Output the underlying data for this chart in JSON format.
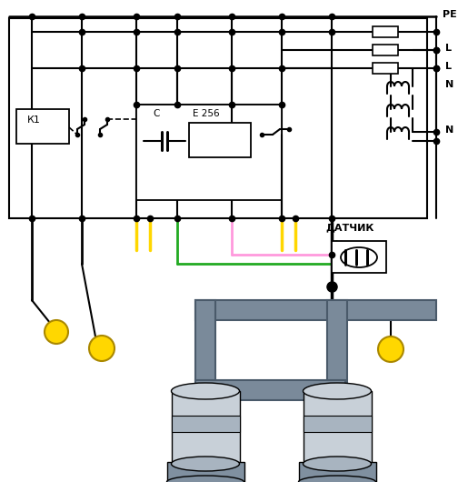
{
  "bg_color": "#ffffff",
  "colors": {
    "black": "#000000",
    "yellow": "#FFD700",
    "green": "#22AA22",
    "pink": "#FF99DD",
    "darkgray": "#6B7280",
    "midgray": "#9CA3AF",
    "lightgray": "#D1D5DB",
    "white": "#FFFFFF",
    "pump_body": "#C8D0D8",
    "pump_dark": "#8090A0",
    "pump_mid": "#A8B4C0"
  },
  "labels": {
    "PE": "PE",
    "L": "L",
    "N": "N",
    "K1": "К1",
    "C": "С",
    "E256": "Е 256",
    "sensor": "ДАТЧИК"
  }
}
